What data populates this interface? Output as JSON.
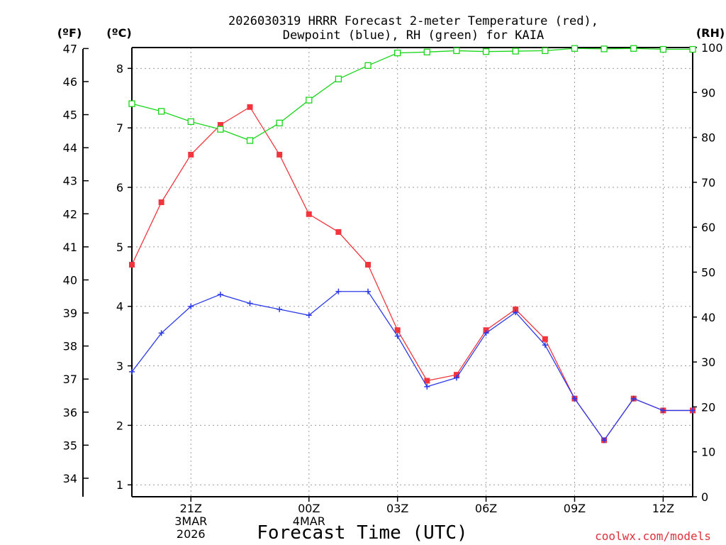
{
  "title_line1": "2026030319 HRRR Forecast 2-meter Temperature (red),",
  "title_line2": "Dewpoint (blue), RH (green) for KAIA",
  "unit_f": "(ºF)",
  "unit_c": "(ºC)",
  "unit_rh": "(RH)",
  "xlabel": "Forecast Time (UTC)",
  "credit": "coolwx.com/models",
  "chart_data": {
    "type": "line",
    "x_hours": [
      18,
      19,
      20,
      21,
      22,
      23,
      24,
      25,
      26,
      27,
      28,
      29,
      30,
      31,
      32,
      33,
      34,
      35,
      36,
      37
    ],
    "x_range": [
      18,
      37
    ],
    "x_ticks": [
      {
        "hour": 20,
        "lines": [
          "21Z",
          "3MAR",
          "2026"
        ]
      },
      {
        "hour": 24,
        "lines": [
          "00Z",
          "4MAR"
        ]
      },
      {
        "hour": 27,
        "lines": [
          "03Z"
        ]
      },
      {
        "hour": 30,
        "lines": [
          "06Z"
        ]
      },
      {
        "hour": 33,
        "lines": [
          "09Z"
        ]
      },
      {
        "hour": 36,
        "lines": [
          "12Z"
        ]
      }
    ],
    "y_left_c": {
      "range": [
        0.8,
        8.35
      ],
      "ticks": [
        1,
        2,
        3,
        4,
        5,
        6,
        7,
        8
      ]
    },
    "y_left_f": {
      "range": [
        33.44,
        47.03
      ],
      "ticks": [
        34,
        35,
        36,
        37,
        38,
        39,
        40,
        41,
        42,
        43,
        44,
        45,
        46,
        47
      ]
    },
    "y_right_rh": {
      "range": [
        0,
        100
      ],
      "ticks": [
        0,
        10,
        20,
        30,
        40,
        50,
        60,
        70,
        80,
        90,
        100
      ]
    },
    "grid": true,
    "series": [
      {
        "axis": "C",
        "color": "#f2353d",
        "marker": "filled-square",
        "values": [
          4.7,
          5.75,
          6.55,
          7.05,
          7.35,
          6.55,
          5.55,
          5.25,
          4.7,
          3.6,
          2.75,
          2.85,
          3.6,
          3.95,
          3.45,
          2.45,
          1.75,
          2.45,
          2.25,
          2.25
        ]
      },
      {
        "axis": "C",
        "color": "#2b3aea",
        "marker": "plus",
        "values": [
          2.9,
          3.55,
          4.0,
          4.2,
          4.05,
          3.95,
          3.85,
          4.25,
          4.25,
          3.5,
          2.65,
          2.8,
          3.55,
          3.9,
          3.35,
          2.45,
          1.75,
          2.45,
          2.25,
          2.25
        ]
      },
      {
        "axis": "RH",
        "color": "#19d619",
        "marker": "open-square",
        "values": [
          87.5,
          85.8,
          83.5,
          81.8,
          79.3,
          83.2,
          88.3,
          93.0,
          96.0,
          98.8,
          99.0,
          99.3,
          99.1,
          99.2,
          99.3,
          99.8,
          99.7,
          99.8,
          99.6,
          99.6
        ]
      }
    ]
  }
}
